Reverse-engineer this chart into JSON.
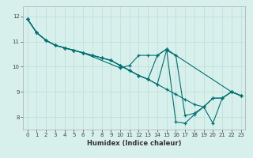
{
  "title": "",
  "xlabel": "Humidex (Indice chaleur)",
  "bg_color": "#d8f0ec",
  "grid_color": "#b8ddd8",
  "line_color": "#007070",
  "marker": "+",
  "xlim": [
    -0.5,
    23.5
  ],
  "ylim": [
    7.5,
    12.4
  ],
  "yticks": [
    8,
    9,
    10,
    11,
    12
  ],
  "xticks": [
    0,
    1,
    2,
    3,
    4,
    5,
    6,
    7,
    8,
    9,
    10,
    11,
    12,
    13,
    14,
    15,
    16,
    17,
    18,
    19,
    20,
    21,
    22,
    23
  ],
  "lines": [
    {
      "x": [
        0,
        1,
        2,
        3,
        4,
        5,
        6,
        10,
        11,
        12,
        13,
        14,
        15,
        16,
        22,
        23
      ],
      "y": [
        11.9,
        11.35,
        11.05,
        10.85,
        10.75,
        10.65,
        10.55,
        9.95,
        10.05,
        10.45,
        10.45,
        10.45,
        10.7,
        10.45,
        9.0,
        8.85
      ]
    },
    {
      "x": [
        0,
        1,
        2,
        3,
        4,
        5,
        6,
        7,
        8,
        9,
        10,
        11,
        12,
        13,
        14,
        15,
        16,
        17,
        18,
        19,
        20,
        21,
        22,
        23
      ],
      "y": [
        11.9,
        11.35,
        11.05,
        10.85,
        10.75,
        10.65,
        10.55,
        10.45,
        10.35,
        10.25,
        10.05,
        9.85,
        9.65,
        9.5,
        9.3,
        10.65,
        10.45,
        8.05,
        8.15,
        8.4,
        8.75,
        8.75,
        9.0,
        8.85
      ]
    },
    {
      "x": [
        0,
        1,
        2,
        3,
        4,
        5,
        6,
        7,
        8,
        9,
        10,
        11,
        12,
        13,
        14,
        15,
        16,
        17,
        18,
        19,
        20,
        21,
        22,
        23
      ],
      "y": [
        11.9,
        11.35,
        11.05,
        10.85,
        10.75,
        10.65,
        10.55,
        10.45,
        10.35,
        10.25,
        10.05,
        9.85,
        9.65,
        9.5,
        10.45,
        10.7,
        7.8,
        7.75,
        8.1,
        8.4,
        7.75,
        8.75,
        9.0,
        8.85
      ]
    },
    {
      "x": [
        0,
        1,
        2,
        3,
        4,
        5,
        6,
        7,
        8,
        9,
        10,
        11,
        12,
        13,
        14,
        15,
        16,
        17,
        18,
        19,
        20,
        21,
        22,
        23
      ],
      "y": [
        11.9,
        11.35,
        11.05,
        10.85,
        10.75,
        10.65,
        10.55,
        10.45,
        10.35,
        10.25,
        10.05,
        9.85,
        9.65,
        9.5,
        9.3,
        9.1,
        8.9,
        8.7,
        8.5,
        8.4,
        8.75,
        8.75,
        9.0,
        8.85
      ]
    }
  ]
}
